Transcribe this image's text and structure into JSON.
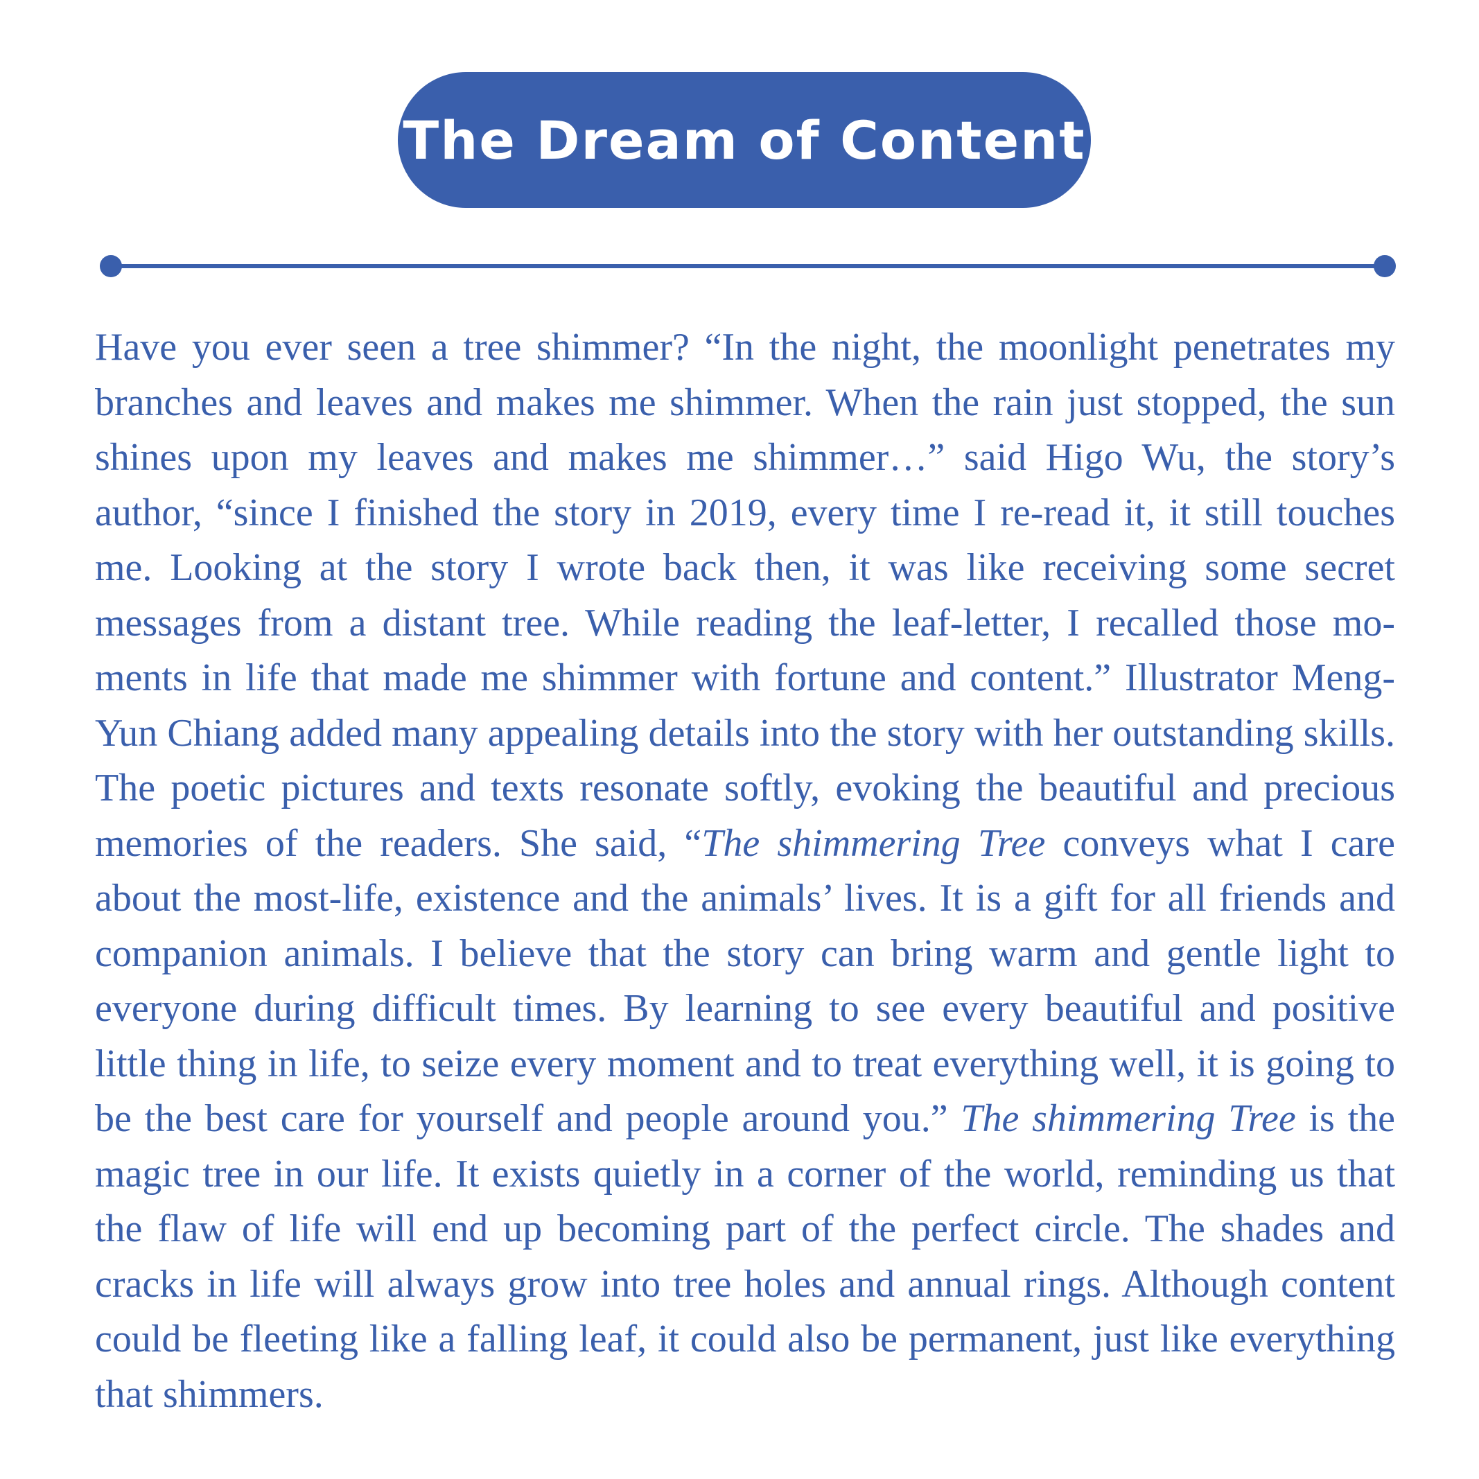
{
  "title": "The Dream of Content",
  "paragraph": [
    "Have you ever seen a tree shimmer? “In the night, the moonlight penetrates my branches and leaves and makes me shimmer. When the rain just stopped, the sun shines upon my leaves and makes me shimmer…” said Higo Wu, the story’s author, “since I finished the story in 2019, every time I re-read it, it still touches me. Looking at the story I wrote back then, it was like receiving some secret messages from a distant tree. While reading the leaf-letter, I recalled those mo­ments in life that made me shimmer with fortune and content.” Illustrator Meng-Yun Chiang added many appealing details into the story with her out­standing skills. The poetic pictures and texts resonate softly, evoking the beauti­ful and precious memories of the readers. She said, “",
    "The shimmering Tree",
    " con­veys what I care about the most-life, existence and the animals’ lives. It is a gift for all friends and companion animals. I believe that the story can bring warm and gentle light to everyone during difficult times. By learning to see every beautiful and positive little thing in life, to seize every moment and to treat everything well, it is going to be the best care for yourself and people around you.” ",
    "The shimmering Tree",
    " is the magic tree in our life. It exists quietly in a corner of the world, reminding us that the flaw of life will end up becoming part of the perfect circle. The shades and cracks in life will always grow into tree holes and annual rings. Although content could be fleeting like a falling leaf, it could also be permanent, just like everything that shimmers."
  ]
}
